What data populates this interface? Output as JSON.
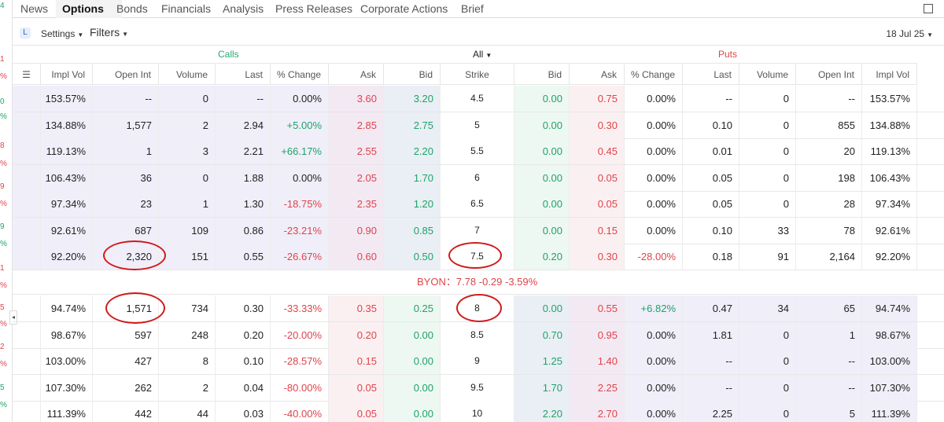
{
  "tabs": [
    "News",
    "Options",
    "Bonds",
    "Financials",
    "Analysis",
    "Press Releases",
    "Corporate Actions",
    "Brief"
  ],
  "toolbar": {
    "settings_label": "Settings",
    "filters_label": "Filters",
    "expiry": "18 Jul 25"
  },
  "sections": {
    "calls": "Calls",
    "puts": "Puts",
    "all": "All"
  },
  "columns": {
    "calls": [
      "Impl Vol",
      "Open Int",
      "Volume",
      "Last",
      "% Change",
      "Ask",
      "Bid"
    ],
    "strike": "Strike",
    "puts": [
      "Bid",
      "Ask",
      "% Change",
      "Last",
      "Volume",
      "Open Int",
      "Impl Vol"
    ]
  },
  "left_markers": [
    "4",
    "1",
    "%",
    "0",
    "%",
    "8",
    "%",
    "9",
    "%",
    "9",
    "%",
    "1",
    "%",
    "5",
    "%",
    "2",
    "%",
    "5",
    "%"
  ],
  "underlying": "BYON：7.78 -0.29 -3.59%",
  "rows_itm_calls": [
    {
      "c_iv": "153.57%",
      "c_oi": "--",
      "c_vol": "0",
      "c_last": "--",
      "c_chg": "0.00%",
      "c_ask": "3.60",
      "c_bid": "3.20",
      "strike": "4.5",
      "p_bid": "0.00",
      "p_ask": "0.75",
      "p_chg": "0.00%",
      "p_last": "--",
      "p_vol": "0",
      "p_oi": "--",
      "p_iv": "153.57%"
    },
    {
      "c_iv": "134.88%",
      "c_oi": "1,577",
      "c_vol": "2",
      "c_last": "2.94",
      "c_chg": "+5.00%",
      "c_ask": "2.85",
      "c_bid": "2.75",
      "strike": "5",
      "p_bid": "0.00",
      "p_ask": "0.30",
      "p_chg": "0.00%",
      "p_last": "0.10",
      "p_vol": "0",
      "p_oi": "855",
      "p_iv": "134.88%"
    },
    {
      "c_iv": "119.13%",
      "c_oi": "1",
      "c_vol": "3",
      "c_last": "2.21",
      "c_chg": "+66.17%",
      "c_ask": "2.55",
      "c_bid": "2.20",
      "strike": "5.5",
      "p_bid": "0.00",
      "p_ask": "0.45",
      "p_chg": "0.00%",
      "p_last": "0.01",
      "p_vol": "0",
      "p_oi": "20",
      "p_iv": "119.13%"
    },
    {
      "c_iv": "106.43%",
      "c_oi": "36",
      "c_vol": "0",
      "c_last": "1.88",
      "c_chg": "0.00%",
      "c_ask": "2.05",
      "c_bid": "1.70",
      "strike": "6",
      "p_bid": "0.00",
      "p_ask": "0.05",
      "p_chg": "0.00%",
      "p_last": "0.05",
      "p_vol": "0",
      "p_oi": "198",
      "p_iv": "106.43%"
    },
    {
      "c_iv": "97.34%",
      "c_oi": "23",
      "c_vol": "1",
      "c_last": "1.30",
      "c_chg": "-18.75%",
      "c_ask": "2.35",
      "c_bid": "1.20",
      "strike": "6.5",
      "p_bid": "0.00",
      "p_ask": "0.05",
      "p_chg": "0.00%",
      "p_last": "0.05",
      "p_vol": "0",
      "p_oi": "28",
      "p_iv": "97.34%"
    },
    {
      "c_iv": "92.61%",
      "c_oi": "687",
      "c_vol": "109",
      "c_last": "0.86",
      "c_chg": "-23.21%",
      "c_ask": "0.90",
      "c_bid": "0.85",
      "strike": "7",
      "p_bid": "0.00",
      "p_ask": "0.15",
      "p_chg": "0.00%",
      "p_last": "0.10",
      "p_vol": "33",
      "p_oi": "78",
      "p_iv": "92.61%"
    },
    {
      "c_iv": "92.20%",
      "c_oi": "2,320",
      "c_vol": "151",
      "c_last": "0.55",
      "c_chg": "-26.67%",
      "c_ask": "0.60",
      "c_bid": "0.50",
      "strike": "7.5",
      "p_bid": "0.20",
      "p_ask": "0.30",
      "p_chg": "-28.00%",
      "p_last": "0.18",
      "p_vol": "91",
      "p_oi": "2,164",
      "p_iv": "92.20%"
    }
  ],
  "rows_itm_puts": [
    {
      "c_iv": "94.74%",
      "c_oi": "1,571",
      "c_vol": "734",
      "c_last": "0.30",
      "c_chg": "-33.33%",
      "c_ask": "0.35",
      "c_bid": "0.25",
      "strike": "8",
      "p_bid": "0.00",
      "p_ask": "0.55",
      "p_chg": "+6.82%",
      "p_last": "0.47",
      "p_vol": "34",
      "p_oi": "65",
      "p_iv": "94.74%"
    },
    {
      "c_iv": "98.67%",
      "c_oi": "597",
      "c_vol": "248",
      "c_last": "0.20",
      "c_chg": "-20.00%",
      "c_ask": "0.20",
      "c_bid": "0.00",
      "strike": "8.5",
      "p_bid": "0.70",
      "p_ask": "0.95",
      "p_chg": "0.00%",
      "p_last": "1.81",
      "p_vol": "0",
      "p_oi": "1",
      "p_iv": "98.67%"
    },
    {
      "c_iv": "103.00%",
      "c_oi": "427",
      "c_vol": "8",
      "c_last": "0.10",
      "c_chg": "-28.57%",
      "c_ask": "0.15",
      "c_bid": "0.00",
      "strike": "9",
      "p_bid": "1.25",
      "p_ask": "1.40",
      "p_chg": "0.00%",
      "p_last": "--",
      "p_vol": "0",
      "p_oi": "--",
      "p_iv": "103.00%"
    },
    {
      "c_iv": "107.30%",
      "c_oi": "262",
      "c_vol": "2",
      "c_last": "0.04",
      "c_chg": "-80.00%",
      "c_ask": "0.05",
      "c_bid": "0.00",
      "strike": "9.5",
      "p_bid": "1.70",
      "p_ask": "2.25",
      "p_chg": "0.00%",
      "p_last": "--",
      "p_vol": "0",
      "p_oi": "--",
      "p_iv": "107.30%"
    },
    {
      "c_iv": "111.39%",
      "c_oi": "442",
      "c_vol": "44",
      "c_last": "0.03",
      "c_chg": "-40.00%",
      "c_ask": "0.05",
      "c_bid": "0.00",
      "strike": "10",
      "p_bid": "2.20",
      "p_ask": "2.70",
      "p_chg": "0.00%",
      "p_last": "2.25",
      "p_vol": "0",
      "p_oi": "5",
      "p_iv": "111.39%"
    }
  ],
  "colors": {
    "green": "#1fa366",
    "red": "#e0434a",
    "itm": "#f0eef9",
    "annotation": "#d01a1a"
  }
}
